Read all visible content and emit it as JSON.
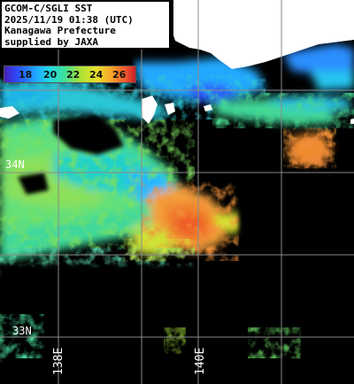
{
  "title": {
    "line1": "GCOM-C/SGLI SST",
    "line2": "2025/11/19 01:38 (UTC)",
    "line3": "Kanagawa Prefecture",
    "line4": "supplied by JAXA"
  },
  "colorbar": {
    "labels": [
      "18",
      "20",
      "22",
      "24",
      "26"
    ]
  },
  "grid": {
    "lat_labels": [
      "34N",
      "33N"
    ],
    "lon_labels": [
      "138E",
      "140E"
    ]
  },
  "colors": {
    "background": "#000000",
    "land": "#ffffff",
    "grid": "#8a8a8a"
  }
}
